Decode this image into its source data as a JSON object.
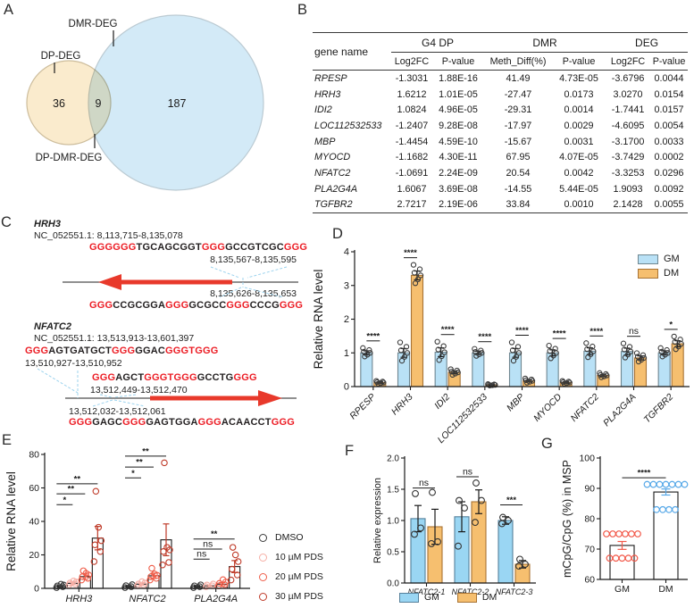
{
  "panels": {
    "A": {
      "label": "A",
      "venn": {
        "left": {
          "name": "DP-DEG",
          "count": "36"
        },
        "right": {
          "name": "DMR-DEG",
          "count": "187"
        },
        "intersection": {
          "name": "DP-DMR-DEG",
          "count": "9"
        },
        "colors": {
          "left_fill": "#FAEBCD",
          "left_stroke": "#CDBD9C",
          "right_fill": "#D3EAF7",
          "right_stroke": "#BBCAD2"
        }
      }
    },
    "B": {
      "label": "B",
      "table": {
        "gene_col": "gene name",
        "groups": [
          {
            "name": "G4 DP",
            "cols": [
              "Log2FC",
              "P-value"
            ]
          },
          {
            "name": "DMR",
            "cols": [
              "Meth_Diff(%)",
              "P-value"
            ]
          },
          {
            "name": "DEG",
            "cols": [
              "Log2FC",
              "P-value"
            ]
          }
        ],
        "rows": [
          {
            "gene": "RPESP",
            "values": [
              "-1.3031",
              "1.88E-16",
              "41.49",
              "4.73E-05",
              "-3.6796",
              "0.0044"
            ]
          },
          {
            "gene": "HRH3",
            "values": [
              "1.6212",
              "1.01E-05",
              "-27.47",
              "0.0173",
              "3.0270",
              "0.0154"
            ]
          },
          {
            "gene": "IDI2",
            "values": [
              "1.0824",
              "4.96E-05",
              "-29.31",
              "0.0014",
              "-1.7441",
              "0.0157"
            ]
          },
          {
            "gene": "LOC112532533",
            "values": [
              "-1.2407",
              "9.28E-08",
              "-17.97",
              "0.0029",
              "-4.6095",
              "0.0054"
            ]
          },
          {
            "gene": "MBP",
            "values": [
              "-1.4454",
              "4.59E-10",
              "-15.67",
              "0.0031",
              "-3.1700",
              "0.0033"
            ]
          },
          {
            "gene": "MYOCD",
            "values": [
              "-1.1682",
              "4.30E-11",
              "67.95",
              "4.07E-05",
              "-3.7429",
              "0.0002"
            ]
          },
          {
            "gene": "NFATC2",
            "values": [
              "-1.0691",
              "2.24E-09",
              "20.54",
              "0.0042",
              "-3.3253",
              "0.0296"
            ]
          },
          {
            "gene": "PLA2G4A",
            "values": [
              "1.6067",
              "3.69E-08",
              "-14.55",
              "5.44E-05",
              "1.9093",
              "0.0092"
            ]
          },
          {
            "gene": "TGFBR2",
            "values": [
              "2.7217",
              "2.19E-06",
              "33.84",
              "0.0010",
              "2.1428",
              "0.0055"
            ]
          }
        ]
      }
    },
    "C": {
      "label": "C",
      "colors": {
        "highlight": "#EC1C24",
        "arrow": "#E8392B",
        "callout": "#9CD3EE"
      },
      "genes": [
        {
          "name": "HRH3",
          "locus": "NC_052551.1: 8,113,715-8,135,078",
          "direction": "left",
          "sequences": [
            {
              "segments": [
                [
                  "GGGGGG",
                  "r"
                ],
                [
                  "TGCAGCGGT",
                  "k"
                ],
                [
                  "GGG",
                  "r"
                ],
                [
                  "GCCGTCGC",
                  "k"
                ],
                [
                  "GGG",
                  "r"
                ]
              ],
              "range": "8,135,567-8,135,595"
            },
            {
              "segments": [
                [
                  "GGG",
                  "r"
                ],
                [
                  "CCGCGGA",
                  "k"
                ],
                [
                  "GGG",
                  "r"
                ],
                [
                  "GCGCC",
                  "k"
                ],
                [
                  "GGG",
                  "r"
                ],
                [
                  "CCCG",
                  "k"
                ],
                [
                  "GGG",
                  "r"
                ]
              ],
              "range": "8,135,626-8,135,653"
            }
          ]
        },
        {
          "name": "NFATC2",
          "locus": "NC_052551.1: 13,513,913-13,601,397",
          "direction": "right",
          "sequences": [
            {
              "segments": [
                [
                  "GGG",
                  "r"
                ],
                [
                  "AGTGATGCT",
                  "k"
                ],
                [
                  "GGG",
                  "r"
                ],
                [
                  "GGAC",
                  "k"
                ],
                [
                  "GGGTGGG",
                  "r"
                ]
              ],
              "range": "13,510,927-13,510,952"
            },
            {
              "segments": [
                [
                  "GGG",
                  "r"
                ],
                [
                  "AGCT",
                  "k"
                ],
                [
                  "GGGTGGG",
                  "r"
                ],
                [
                  "GCCTG",
                  "k"
                ],
                [
                  "GGG",
                  "r"
                ]
              ],
              "range": "13,512,449-13,512,470"
            },
            {
              "segments": [
                [
                  "GGG",
                  "r"
                ],
                [
                  "GAGC",
                  "k"
                ],
                [
                  "GGG",
                  "r"
                ],
                [
                  "GAGTGGA",
                  "k"
                ],
                [
                  "GGG",
                  "r"
                ],
                [
                  "ACAACCT",
                  "k"
                ],
                [
                  "GGG",
                  "r"
                ]
              ],
              "range": "13,512,032-13,512,061"
            }
          ]
        }
      ]
    },
    "D": {
      "label": "D"
    },
    "E": {
      "label": "E"
    },
    "F": {
      "label": "F"
    },
    "G": {
      "label": "G"
    }
  },
  "chart_data": [
    {
      "id": "D",
      "type": "bar",
      "ylabel": "Relative RNA level",
      "ylim": [
        0,
        4
      ],
      "yticks": [
        0,
        1,
        2,
        3,
        4
      ],
      "grid": false,
      "legend_pos": "top-right",
      "categories": [
        "RPESP",
        "HRH3",
        "IDI2",
        "LOC112532533",
        "MBP",
        "MYOCD",
        "NFATC2",
        "PLA2G4A",
        "TGFBR2"
      ],
      "series": [
        {
          "name": "GM",
          "fill": "#B9E1F6",
          "stroke": "#6F8791",
          "pt": "#3b3b3b",
          "errc": "#1a1a1a",
          "values": [
            1.0,
            1.0,
            1.02,
            1.0,
            1.0,
            1.0,
            1.05,
            1.04,
            1.0
          ],
          "err": [
            0.06,
            0.13,
            0.13,
            0.05,
            0.13,
            0.09,
            0.1,
            0.1,
            0.06
          ]
        },
        {
          "name": "DM",
          "fill": "#F6BF6F",
          "stroke": "#A87334",
          "pt": "#3b3b3b",
          "errc": "#1a1a1a",
          "values": [
            0.12,
            3.3,
            0.42,
            0.05,
            0.17,
            0.12,
            0.33,
            0.85,
            1.27
          ],
          "err": [
            0.02,
            0.13,
            0.04,
            0.01,
            0.03,
            0.02,
            0.03,
            0.06,
            0.09
          ]
        }
      ],
      "sig": [
        "****",
        "****",
        "****",
        "****",
        "****",
        "****",
        "****",
        "ns",
        "*"
      ]
    },
    {
      "id": "E",
      "type": "bar",
      "ylabel": "Relative RNA level",
      "ylim": [
        0,
        80
      ],
      "yticks": [
        0,
        20,
        40,
        60,
        80
      ],
      "grid": false,
      "legend_pos": "right",
      "categories": [
        "HRH3",
        "NFATC2",
        "PLA2G4A"
      ],
      "series": [
        {
          "name": "DMSO",
          "fill": "#FFFFFF",
          "stroke": "#1a1a1a",
          "pt": "#3a3a3a",
          "errc": "#1a1a1a",
          "values": [
            1.2,
            1.2,
            1.2
          ],
          "err": [
            0.5,
            0.5,
            0.5
          ],
          "pts": [
            [
              0.5,
              1,
              1.5,
              2,
              2.5
            ],
            [
              0.5,
              1,
              1.6,
              2.2
            ],
            [
              0.5,
              1,
              1.5,
              2.1
            ]
          ]
        },
        {
          "name": "10 µM PDS",
          "fill": "#FFFFFF",
          "stroke": "#1a1a1a",
          "pt": "#F6AEA5",
          "errc": "#F6AEA5",
          "values": [
            3,
            2.5,
            1.5
          ],
          "err": [
            0.8,
            0.7,
            0.5
          ],
          "pts": [
            [
              2,
              2.6,
              3.2,
              3.8,
              4.4
            ],
            [
              1.5,
              2,
              2.6,
              3.2,
              4
            ],
            [
              1,
              1.5,
              2,
              2.6
            ]
          ]
        },
        {
          "name": "20 µM PDS",
          "fill": "#FFFFFF",
          "stroke": "#1a1a1a",
          "pt": "#EF5D49",
          "errc": "#EF5D49",
          "values": [
            7,
            7.5,
            2.5
          ],
          "err": [
            1.6,
            1.6,
            1
          ],
          "pts": [
            [
              5,
              6,
              7,
              8,
              9,
              10.5
            ],
            [
              5,
              6,
              7,
              7.8,
              8.6,
              12
            ],
            [
              1.5,
              2.2,
              3,
              3.8,
              5.2
            ]
          ]
        },
        {
          "name": "30 µM PDS",
          "fill": "#FFFFFF",
          "stroke": "#1a1a1a",
          "pt": "#BF3A28",
          "errc": "#BF3A28",
          "values": [
            30,
            29,
            13
          ],
          "err": [
            7,
            9.5,
            3.6
          ],
          "pts": [
            [
              16,
              22,
              26,
              28.5,
              36.5,
              58
            ],
            [
              14,
              15.5,
              22,
              23,
              24.5,
              75
            ],
            [
              5,
              8,
              11.5,
              16,
              20,
              24.5
            ]
          ]
        }
      ],
      "sig_brackets": [
        {
          "cat": 0,
          "from": 0,
          "to": 1,
          "y": 50,
          "label": "*"
        },
        {
          "cat": 0,
          "from": 0,
          "to": 2,
          "y": 56.5,
          "label": "**"
        },
        {
          "cat": 0,
          "from": 0,
          "to": 3,
          "y": 62.5,
          "label": "**"
        },
        {
          "cat": 1,
          "from": 0,
          "to": 1,
          "y": 66,
          "label": "*"
        },
        {
          "cat": 1,
          "from": 0,
          "to": 2,
          "y": 72.5,
          "label": "**"
        },
        {
          "cat": 1,
          "from": 0,
          "to": 3,
          "y": 79,
          "label": "**"
        },
        {
          "cat": 2,
          "from": 0,
          "to": 1,
          "y": 17.5,
          "label": "ns"
        },
        {
          "cat": 2,
          "from": 0,
          "to": 2,
          "y": 23.5,
          "label": "ns"
        },
        {
          "cat": 2,
          "from": 0,
          "to": 3,
          "y": 29.5,
          "label": "**"
        }
      ]
    },
    {
      "id": "F",
      "type": "bar",
      "ylabel": "Relative expression",
      "ylim": [
        0,
        2
      ],
      "yticks": [
        "0.0",
        "0.5",
        "1.0",
        "1.5",
        "2.0"
      ],
      "grid": false,
      "legend_pos": "bottom",
      "categories": [
        "NFATC2-1",
        "NFATC2-2",
        "NFATC2-3"
      ],
      "series": [
        {
          "name": "GM",
          "fill": "#9AD6F3",
          "stroke": "#55809B",
          "pt": "#333333",
          "errc": "#1a1a1a",
          "values": [
            1.03,
            1.06,
            1.0
          ],
          "err": [
            0.21,
            0.24,
            0.06
          ],
          "pts": [
            [
              0.78,
              0.88,
              1.43
            ],
            [
              0.59,
              1.2,
              1.32
            ],
            [
              0.95,
              1.0,
              1.05
            ]
          ]
        },
        {
          "name": "DM",
          "fill": "#F6BF6F",
          "stroke": "#A87334",
          "pt": "#333333",
          "errc": "#1a1a1a",
          "values": [
            0.9,
            1.3,
            0.3
          ],
          "err": [
            0.28,
            0.19,
            0.06
          ],
          "pts": [
            [
              0.63,
              0.66,
              1.45
            ],
            [
              0.97,
              1.32,
              1.6
            ],
            [
              0.27,
              0.3,
              0.38
            ]
          ]
        }
      ],
      "sig_brackets": [
        {
          "cat": 0,
          "from": 0,
          "to": 1,
          "y": 1.52,
          "label": "ns"
        },
        {
          "cat": 1,
          "from": 0,
          "to": 1,
          "y": 1.7,
          "label": "ns"
        },
        {
          "cat": 2,
          "from": 0,
          "to": 1,
          "y": 1.25,
          "label": "***"
        }
      ]
    },
    {
      "id": "G",
      "type": "bar",
      "ylabel": "mCpG/CpG (%) in MSP",
      "ylim": [
        60,
        100
      ],
      "yticks": [
        60,
        70,
        80,
        90,
        100
      ],
      "grid": false,
      "categories": [
        "GM",
        "DM"
      ],
      "series": [
        {
          "name": "mCpG/CpG",
          "fill": "#FFFFFF",
          "stroke": "#1a1a1a",
          "values": [
            71.2,
            88.8
          ],
          "err": [
            1.3,
            1.0
          ],
          "err_colors": [
            "#F2594A",
            "#56A8E8"
          ],
          "pt_colors": [
            "#F2594A",
            "#56A8E8"
          ],
          "pt_rows": [
            [
              {
                "v": 75,
                "n": 6
              },
              {
                "v": 67,
                "n": 5
              }
            ],
            [
              {
                "v": 91.3,
                "n": 7
              },
              {
                "v": 83,
                "n": 4
              }
            ]
          ]
        }
      ],
      "sig_brackets": [
        {
          "cats": [
            0,
            1
          ],
          "y": 93.5,
          "label": "****"
        }
      ]
    }
  ]
}
